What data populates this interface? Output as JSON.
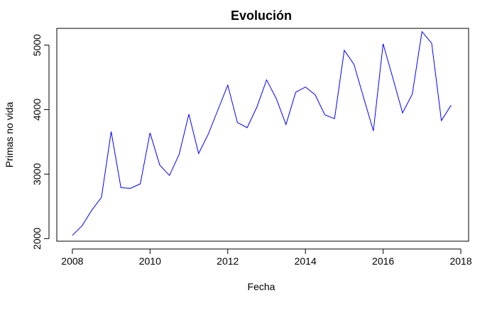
{
  "chart_data": {
    "type": "line",
    "title": "Evolución",
    "xlabel": "Fecha",
    "ylabel": "Primas no vida",
    "xlim": [
      2007.6,
      2018.2
    ],
    "ylim": [
      1960,
      5260
    ],
    "x_ticks": [
      2008,
      2010,
      2012,
      2014,
      2016,
      2018
    ],
    "y_ticks": [
      2000,
      3000,
      4000,
      5000
    ],
    "grid": false,
    "line_color": "#0000ff",
    "series": [
      {
        "x": [
          2008.0,
          2008.25,
          2008.5,
          2008.75,
          2009.0,
          2009.25,
          2009.5,
          2009.75,
          2010.0,
          2010.25,
          2010.5,
          2010.75,
          2011.0,
          2011.25,
          2011.5,
          2011.75,
          2012.0,
          2012.25,
          2012.5,
          2012.75,
          2013.0,
          2013.25,
          2013.5,
          2013.75,
          2014.0,
          2014.25,
          2014.5,
          2014.75,
          2015.0,
          2015.25,
          2015.5,
          2015.75,
          2016.0,
          2016.25,
          2016.5,
          2016.75,
          2017.0,
          2017.25,
          2017.5,
          2017.75
        ],
        "values": [
          2050,
          2200,
          2440,
          2640,
          3660,
          2790,
          2780,
          2850,
          3640,
          3140,
          2980,
          3310,
          3930,
          3320,
          3620,
          4000,
          4380,
          3800,
          3720,
          4040,
          4460,
          4170,
          3770,
          4270,
          4350,
          4230,
          3920,
          3860,
          4920,
          4700,
          4180,
          3670,
          5020,
          4490,
          3950,
          4240,
          5210,
          5030,
          3830,
          4070
        ]
      }
    ]
  }
}
